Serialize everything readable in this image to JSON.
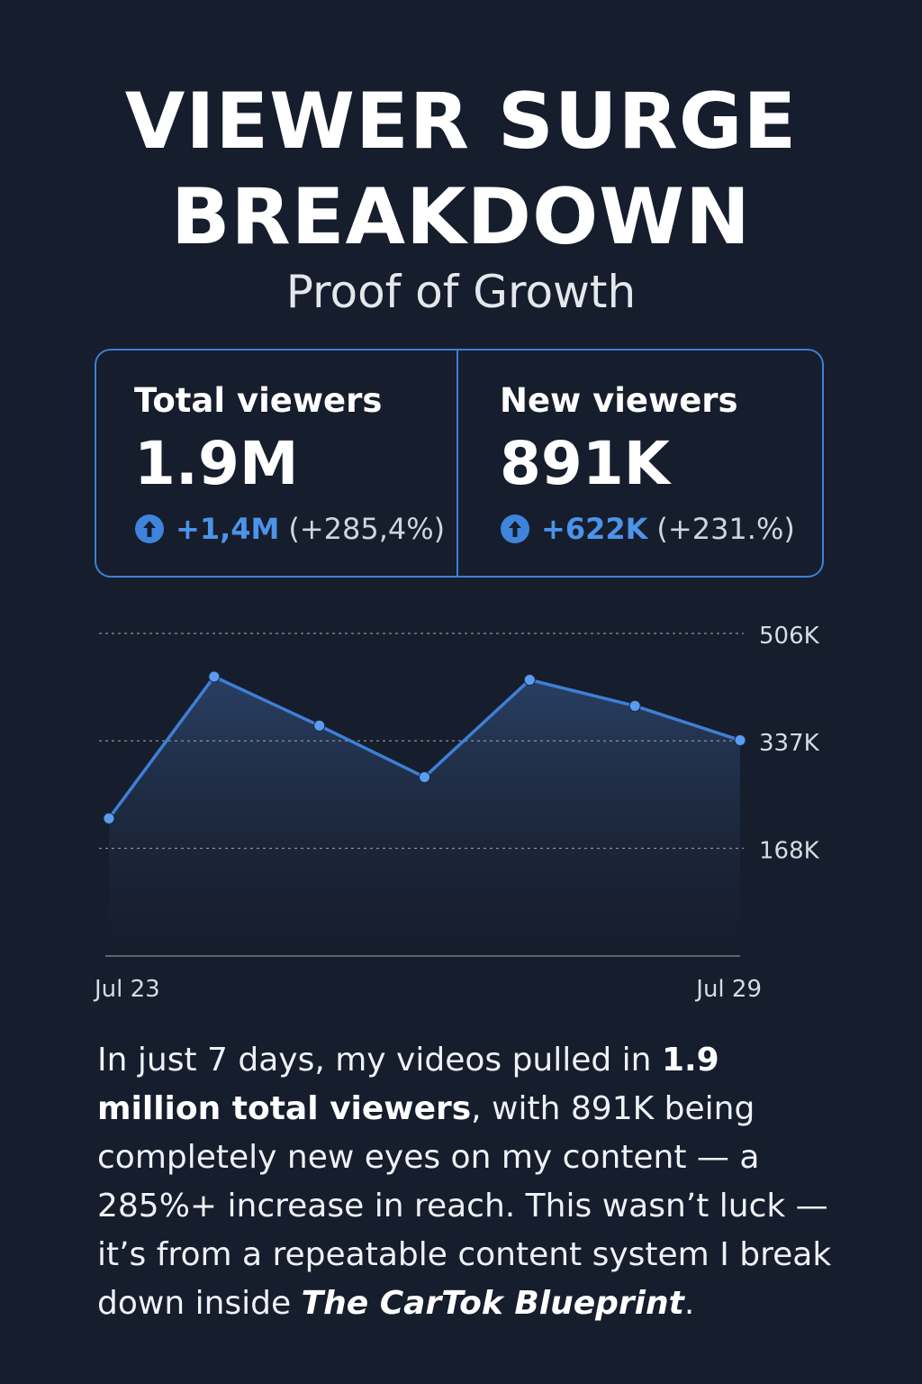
{
  "header": {
    "title_line1": "VIEWER SURGE",
    "title_line2": "BREAKDOWN",
    "subtitle": "Proof of Growth"
  },
  "stats": [
    {
      "label": "Total viewers",
      "value": "1.9M",
      "delta": "+1,4M",
      "percent": "(+285,4%)",
      "icon": "arrow-up-circle-icon"
    },
    {
      "label": "New viewers",
      "value": "891K",
      "delta": "+622K",
      "percent": "(+231.%)",
      "icon": "arrow-up-circle-icon"
    }
  ],
  "colors": {
    "background": "#161d2c",
    "accent": "#4c93ea",
    "line": "#3f7fd6",
    "area_top": "#2a4166",
    "area_bottom": "#161d2c",
    "gridline": "#8a919c",
    "axis": "#5c6370",
    "tick_text": "#d7dbe2"
  },
  "chart_data": {
    "type": "area",
    "x_labels": [
      "Jul 23",
      "Jul 29"
    ],
    "y_ticks": [
      {
        "value": 168,
        "label": "168K"
      },
      {
        "value": 337,
        "label": "337K"
      },
      {
        "value": 506,
        "label": "506K"
      }
    ],
    "ylim": [
      0,
      506
    ],
    "y_unit": "K viewers",
    "series": [
      {
        "values": [
          {
            "x": "Jul 23",
            "y": 215
          },
          {
            "x": "Jul 24",
            "y": 438
          },
          {
            "x": "Jul 25",
            "y": 361
          },
          {
            "x": "Jul 26",
            "y": 280
          },
          {
            "x": "Jul 27",
            "y": 433
          },
          {
            "x": "Jul 28",
            "y": 392
          },
          {
            "x": "Jul 29",
            "y": 338
          }
        ]
      }
    ],
    "grid": "horizontal dotted",
    "legend": "none"
  },
  "body": {
    "p1": "In just 7 days, my videos pulled in ",
    "b1": "1.9 million total viewers",
    "p2": ", with 891K being completely new eyes on my content — a 285%+ increase in reach. This wasn’t luck — it’s from a repeatable content system I break down inside ",
    "i1": "The CarTok Blueprint",
    "p3": "."
  }
}
